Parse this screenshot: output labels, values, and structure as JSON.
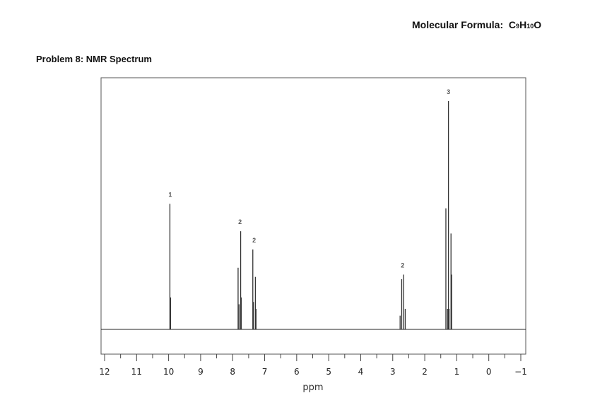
{
  "header": {
    "formula_label": "Molecular Formula:",
    "formula_parts": [
      "C",
      "9",
      "H",
      "10",
      "O"
    ],
    "problem_title": "Problem 8:  NMR Spectrum"
  },
  "chart_data": {
    "type": "line",
    "title": "Problem 8:  NMR Spectrum",
    "xlabel": "ppm",
    "ylabel": "",
    "xlim": [
      12,
      -1
    ],
    "ylim": [
      0,
      1
    ],
    "x_reversed": true,
    "x_ticks": [
      12,
      11,
      10,
      9,
      8,
      7,
      6,
      5,
      4,
      3,
      2,
      1,
      0,
      -1
    ],
    "x_tick_labels": [
      "12",
      "11",
      "10",
      "9",
      "8",
      "7",
      "6",
      "5",
      "4",
      "3",
      "2",
      "1",
      "0",
      "−1"
    ],
    "grid": false,
    "peaks": [
      {
        "ppm": 9.96,
        "intensity": 0.55
      },
      {
        "ppm": 9.94,
        "intensity": 0.14
      },
      {
        "ppm": 7.83,
        "intensity": 0.27
      },
      {
        "ppm": 7.8,
        "intensity": 0.11
      },
      {
        "ppm": 7.75,
        "intensity": 0.43
      },
      {
        "ppm": 7.73,
        "intensity": 0.14
      },
      {
        "ppm": 7.37,
        "intensity": 0.35
      },
      {
        "ppm": 7.35,
        "intensity": 0.12
      },
      {
        "ppm": 7.29,
        "intensity": 0.23
      },
      {
        "ppm": 7.27,
        "intensity": 0.09
      },
      {
        "ppm": 2.77,
        "intensity": 0.06
      },
      {
        "ppm": 2.72,
        "intensity": 0.22
      },
      {
        "ppm": 2.66,
        "intensity": 0.24
      },
      {
        "ppm": 2.61,
        "intensity": 0.09
      },
      {
        "ppm": 1.34,
        "intensity": 0.53
      },
      {
        "ppm": 1.29,
        "intensity": 0.09
      },
      {
        "ppm": 1.26,
        "intensity": 1.0
      },
      {
        "ppm": 1.24,
        "intensity": 0.09
      },
      {
        "ppm": 1.18,
        "intensity": 0.42
      },
      {
        "ppm": 1.16,
        "intensity": 0.24
      }
    ],
    "integrations": [
      {
        "ppm": 9.95,
        "label": "1"
      },
      {
        "ppm": 7.77,
        "label": "2"
      },
      {
        "ppm": 7.33,
        "label": "2"
      },
      {
        "ppm": 2.69,
        "label": "2"
      },
      {
        "ppm": 1.26,
        "label": "3"
      }
    ]
  }
}
